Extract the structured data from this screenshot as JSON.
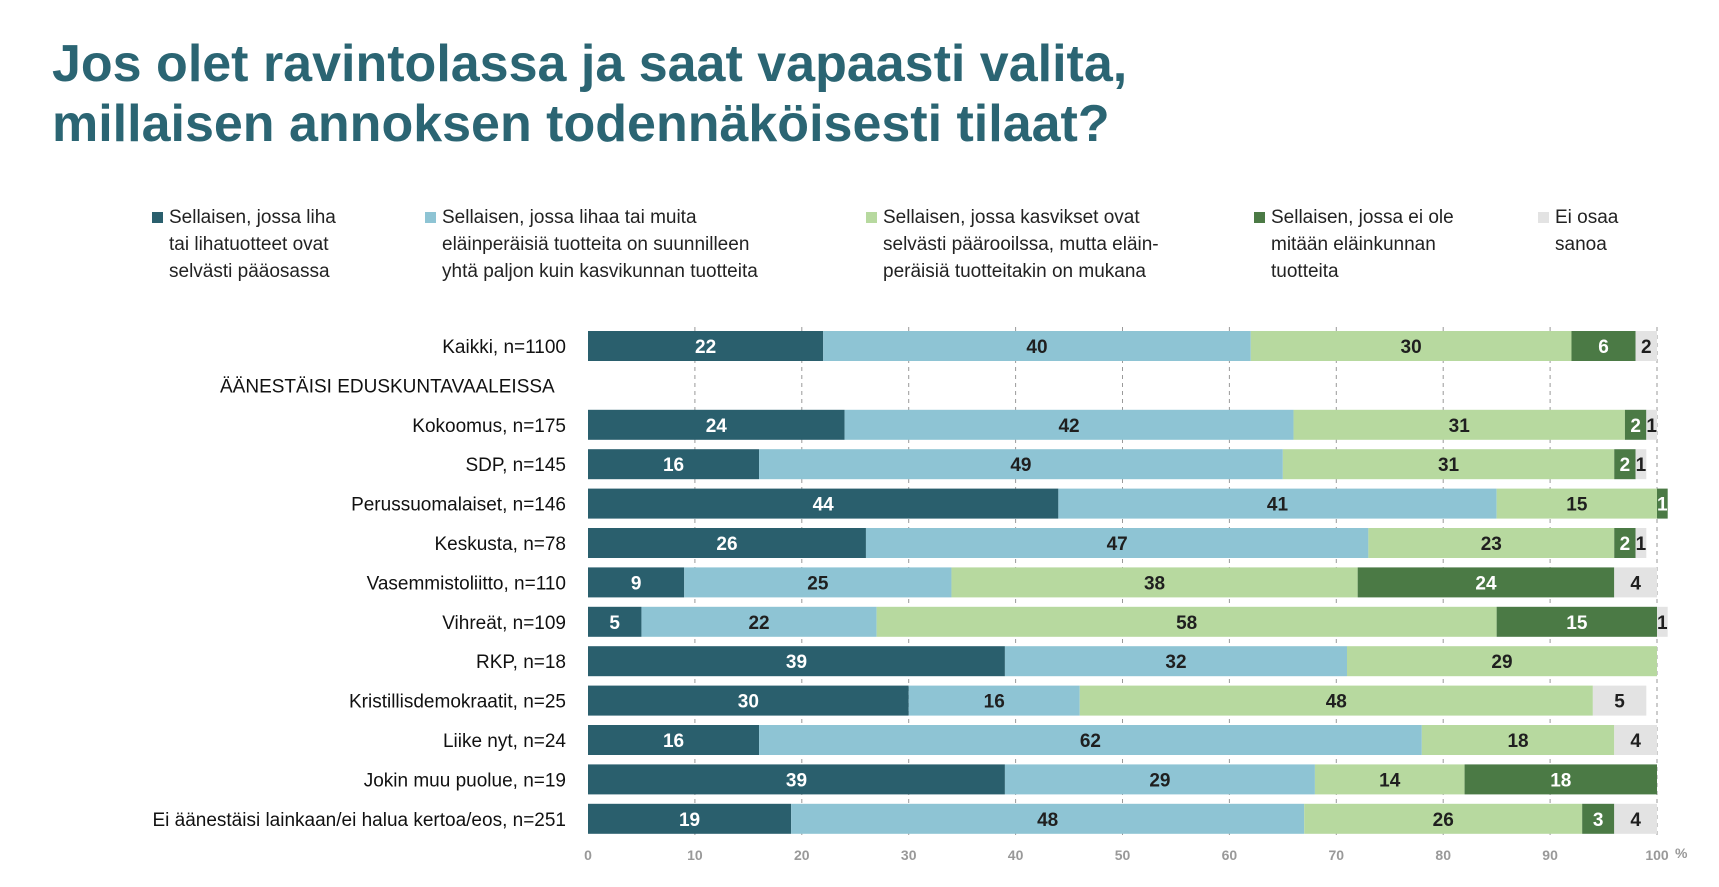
{
  "title_line1": "Jos olet ravintolassa ja saat vapaasti valita,",
  "title_line2": "millaisen annoksen todennäköisesti tilaat?",
  "legend": [
    {
      "text": "Sellaisen, jossa liha\ntai lihatuotteet ovat\nselvästi pääosassa",
      "color": "#2a5f6d"
    },
    {
      "text": "Sellaisen, jossa lihaa tai muita\neläinperäisiä tuotteita on suunnilleen\nyhtä paljon kuin kasvikunnan tuotteita",
      "color": "#8ec4d4"
    },
    {
      "text": "Sellaisen, jossa kasvikset ovat\nselvästi päärooilssa, mutta eläin-\nperäisiä tuotteitakin on mukana",
      "color": "#b7d99f"
    },
    {
      "text": "Sellaisen, jossa ei ole\nmitään eläinkunnan\ntuotteita",
      "color": "#4b7a45"
    },
    {
      "text": "Ei osaa\nsanoa",
      "color": "#e3e3e3"
    }
  ],
  "chart_data": {
    "type": "stacked-bar-horizontal",
    "x_unit": "%",
    "xlim": [
      0,
      100
    ],
    "x_ticks": [
      0,
      10,
      20,
      30,
      40,
      50,
      60,
      70,
      80,
      90,
      100
    ],
    "grid": "vertical dashed",
    "series": [
      {
        "name": "Sellaisen, jossa liha tai lihatuotteet ovat selvästi pääosassa",
        "color": "#2a5f6d",
        "label_color": "#ffffff"
      },
      {
        "name": "Sellaisen, jossa lihaa tai muita eläinperäisiä tuotteita on suunnilleen yhtä paljon kuin kasvikunnan tuotteita",
        "color": "#8ec4d4",
        "label_color": "#1f1f1f"
      },
      {
        "name": "Sellaisen, jossa kasvikset ovat selvästi päärooilssa, mutta eläinperäisiä tuotteitakin on mukana",
        "color": "#b7d99f",
        "label_color": "#1f1f1f"
      },
      {
        "name": "Sellaisen, jossa ei ole mitään eläinkunnan tuotteita",
        "color": "#4b7a45",
        "label_color": "#ffffff"
      },
      {
        "name": "Ei osaa sanoa",
        "color": "#e3e3e3",
        "label_color": "#1f1f1f"
      }
    ],
    "rows": [
      {
        "label": "Kaikki, n=1100",
        "values": [
          22,
          40,
          30,
          6,
          2
        ]
      },
      {
        "label": "ÄÄNESTÄISI EDUSKUNTAVAALEISSA",
        "values": null
      },
      {
        "label": "Kokoomus, n=175",
        "values": [
          24,
          42,
          31,
          2,
          1
        ]
      },
      {
        "label": "SDP, n=145",
        "values": [
          16,
          49,
          31,
          2,
          1
        ]
      },
      {
        "label": "Perussuomalaiset, n=146",
        "values": [
          44,
          41,
          15,
          1,
          0
        ]
      },
      {
        "label": "Keskusta, n=78",
        "values": [
          26,
          47,
          23,
          2,
          1
        ]
      },
      {
        "label": "Vasemmistoliitto, n=110",
        "values": [
          9,
          25,
          38,
          24,
          4
        ]
      },
      {
        "label": "Vihreät, n=109",
        "values": [
          5,
          22,
          58,
          15,
          1
        ]
      },
      {
        "label": "RKP, n=18",
        "values": [
          39,
          32,
          29,
          0,
          0
        ]
      },
      {
        "label": "Kristillisdemokraatit, n=25",
        "values": [
          30,
          16,
          48,
          0,
          5
        ]
      },
      {
        "label": "Liike nyt, n=24",
        "values": [
          16,
          62,
          18,
          0,
          4
        ]
      },
      {
        "label": "Jokin muu puolue, n=19",
        "values": [
          39,
          29,
          14,
          18,
          0
        ]
      },
      {
        "label": "Ei äänestäisi lainkaan/ei halua kertoa/eos, n=251",
        "values": [
          19,
          48,
          26,
          3,
          4
        ]
      }
    ]
  }
}
